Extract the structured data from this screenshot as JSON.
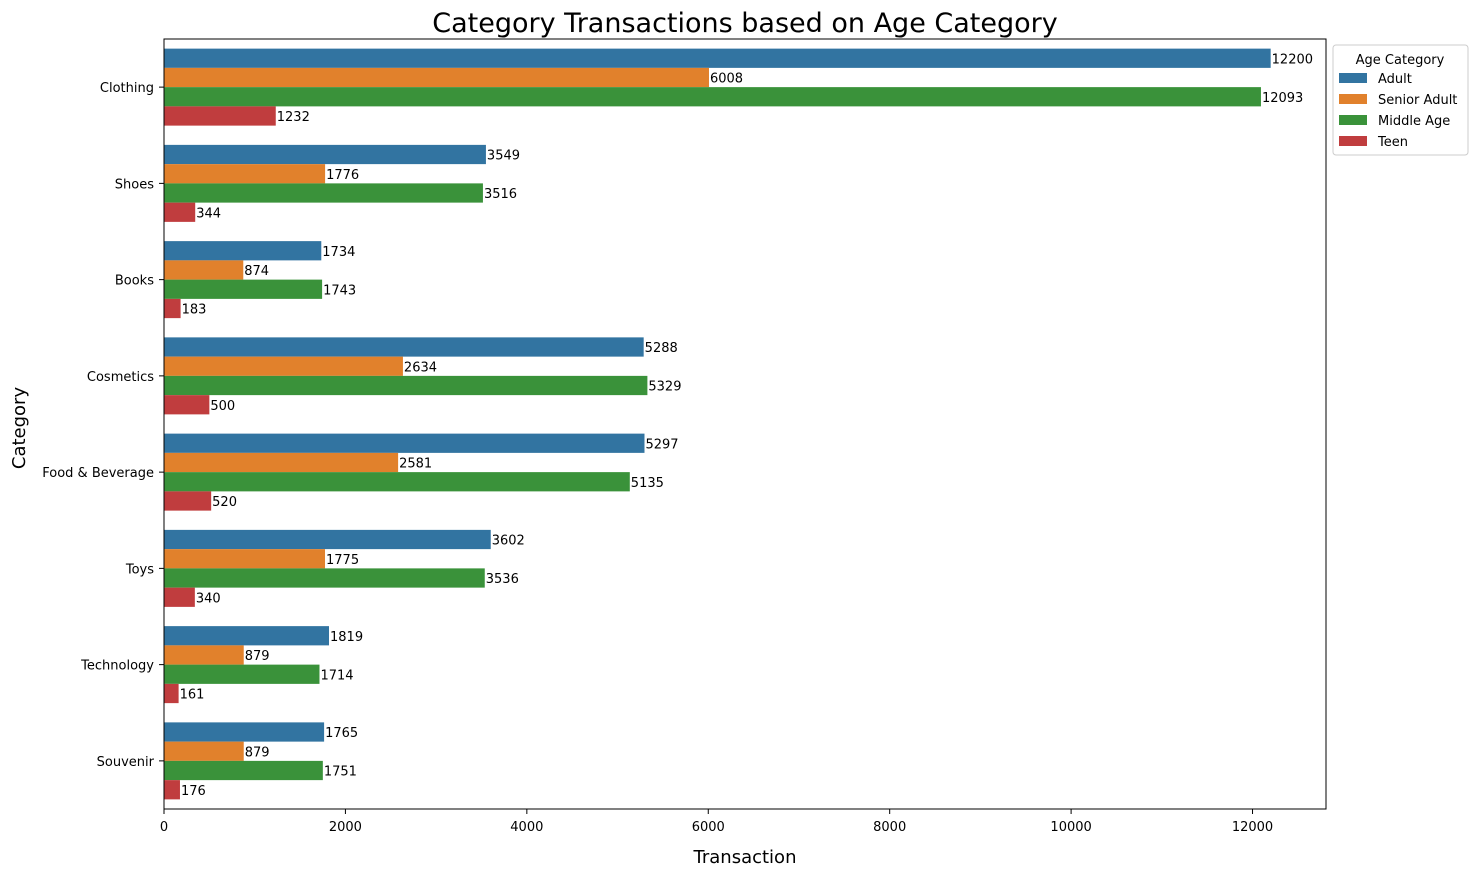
{
  "chart_data": {
    "type": "bar",
    "orientation": "horizontal",
    "title": "Category Transactions based on Age Category",
    "xlabel": "Transaction",
    "ylabel": "Category",
    "xlim": [
      0,
      12810
    ],
    "xticks": [
      0,
      2000,
      4000,
      6000,
      8000,
      10000,
      12000
    ],
    "categories": [
      "Clothing",
      "Shoes",
      "Books",
      "Cosmetics",
      "Food & Beverage",
      "Toys",
      "Technology",
      "Souvenir"
    ],
    "series": [
      {
        "name": "Adult",
        "color": "#3274a1",
        "values": [
          12200,
          3549,
          1734,
          5288,
          5297,
          3602,
          1819,
          1765
        ]
      },
      {
        "name": "Senior Adult",
        "color": "#e1812c",
        "values": [
          6008,
          1776,
          874,
          2634,
          2581,
          1775,
          879,
          879
        ]
      },
      {
        "name": "Middle Age",
        "color": "#3a923a",
        "values": [
          12093,
          3516,
          1743,
          5329,
          5135,
          3536,
          1714,
          1751
        ]
      },
      {
        "name": "Teen",
        "color": "#c03d3e",
        "values": [
          1232,
          344,
          183,
          500,
          520,
          340,
          161,
          176
        ]
      }
    ],
    "grid": false,
    "legend": {
      "title": "Age Category",
      "placement": "outside-top-right"
    }
  }
}
